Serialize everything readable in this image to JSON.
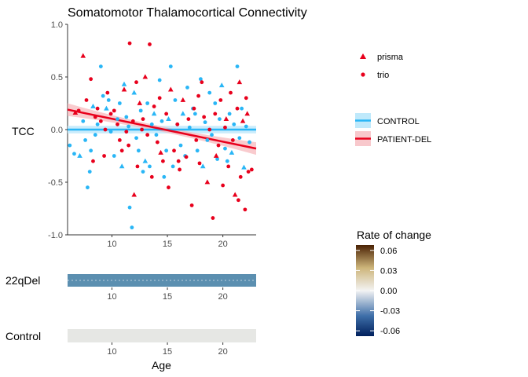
{
  "chart_data": {
    "type": "scatter",
    "title": "Somatomotor Thalamocortical Connectivity",
    "ylabel": "TCC",
    "xlabel": "Age",
    "xlim": [
      6,
      23
    ],
    "ylim": [
      -1,
      1
    ],
    "x_ticks": [
      10,
      15,
      20
    ],
    "y_ticks": [
      -1.0,
      -0.5,
      0.0,
      0.5,
      1.0
    ],
    "y_tick_labels": [
      "-1.0",
      "-0.5",
      "0.0",
      "0.5",
      "1.0"
    ],
    "shape_legend": [
      {
        "label": "prisma",
        "shape": "triangle"
      },
      {
        "label": "trio",
        "shape": "circle"
      }
    ],
    "line_legend": [
      {
        "label": "CONTROL",
        "color": "#29B6F6"
      },
      {
        "label": "PATIENT-DEL",
        "color": "#E8001C"
      }
    ],
    "colors": {
      "control": "#29B6F6",
      "patient": "#E8001C",
      "band_22q": "#5B8FB0",
      "band_control": "#E6E7E4"
    },
    "fits": [
      {
        "name": "CONTROL",
        "x": [
          6,
          23
        ],
        "y": [
          0.0,
          0.0
        ],
        "ci": 0.035
      },
      {
        "name": "PATIENT-DEL",
        "x": [
          6,
          23
        ],
        "y": [
          0.19,
          -0.18
        ],
        "ci_ends": 0.06,
        "ci_mid": 0.025
      }
    ],
    "series": [
      {
        "name": "CONTROL",
        "points": [
          [
            6.2,
            -0.15,
            "c"
          ],
          [
            6.6,
            -0.23,
            "c"
          ],
          [
            7.1,
            -0.25,
            "t"
          ],
          [
            7.4,
            0.08,
            "c"
          ],
          [
            7.6,
            -0.1,
            "c"
          ],
          [
            7.8,
            -0.55,
            "c"
          ],
          [
            8.0,
            -0.4,
            "c"
          ],
          [
            8.1,
            -0.2,
            "c"
          ],
          [
            8.3,
            0.22,
            "t"
          ],
          [
            8.5,
            -0.05,
            "c"
          ],
          [
            8.7,
            0.05,
            "c"
          ],
          [
            9.0,
            0.6,
            "c"
          ],
          [
            9.2,
            0.32,
            "c"
          ],
          [
            9.5,
            0.2,
            "t"
          ],
          [
            9.7,
            0.28,
            "c"
          ],
          [
            9.9,
            -0.02,
            "c"
          ],
          [
            10.2,
            -0.25,
            "c"
          ],
          [
            10.5,
            0.1,
            "c"
          ],
          [
            10.7,
            0.25,
            "c"
          ],
          [
            10.9,
            -0.35,
            "t"
          ],
          [
            11.1,
            0.43,
            "t"
          ],
          [
            11.3,
            0.12,
            "c"
          ],
          [
            11.5,
            0.03,
            "c"
          ],
          [
            11.6,
            -0.74,
            "c"
          ],
          [
            11.8,
            -0.93,
            "c"
          ],
          [
            12.0,
            0.35,
            "t"
          ],
          [
            12.2,
            -0.08,
            "c"
          ],
          [
            12.4,
            -0.2,
            "c"
          ],
          [
            12.6,
            0.18,
            "c"
          ],
          [
            12.8,
            -0.4,
            "c"
          ],
          [
            13.0,
            -0.3,
            "t"
          ],
          [
            13.2,
            0.25,
            "c"
          ],
          [
            13.4,
            -0.35,
            "c"
          ],
          [
            13.6,
            0.05,
            "c"
          ],
          [
            13.8,
            0.15,
            "t"
          ],
          [
            14.0,
            -0.05,
            "c"
          ],
          [
            14.3,
            0.47,
            "c"
          ],
          [
            14.5,
            0.08,
            "c"
          ],
          [
            14.7,
            -0.45,
            "c"
          ],
          [
            14.9,
            -0.2,
            "c"
          ],
          [
            15.1,
            0.1,
            "t"
          ],
          [
            15.3,
            0.6,
            "c"
          ],
          [
            15.5,
            -0.35,
            "c"
          ],
          [
            15.7,
            0.28,
            "c"
          ],
          [
            15.9,
            0.05,
            "c"
          ],
          [
            16.2,
            -0.15,
            "c"
          ],
          [
            16.4,
            0.15,
            "t"
          ],
          [
            16.6,
            -0.25,
            "c"
          ],
          [
            16.8,
            0.4,
            "c"
          ],
          [
            17.0,
            0.02,
            "c"
          ],
          [
            17.3,
            0.2,
            "c"
          ],
          [
            17.5,
            0.15,
            "c"
          ],
          [
            17.7,
            -0.2,
            "c"
          ],
          [
            18.0,
            0.48,
            "c"
          ],
          [
            18.2,
            -0.35,
            "t"
          ],
          [
            18.4,
            0.07,
            "c"
          ],
          [
            18.6,
            -0.1,
            "c"
          ],
          [
            18.8,
            0.35,
            "c"
          ],
          [
            19.0,
            -0.05,
            "c"
          ],
          [
            19.3,
            0.25,
            "c"
          ],
          [
            19.5,
            -0.28,
            "c"
          ],
          [
            19.7,
            0.1,
            "c"
          ],
          [
            19.9,
            0.42,
            "t"
          ],
          [
            20.2,
            -0.18,
            "c"
          ],
          [
            20.4,
            -0.3,
            "c"
          ],
          [
            20.6,
            0.15,
            "c"
          ],
          [
            20.8,
            -0.22,
            "t"
          ],
          [
            21.0,
            0.05,
            "c"
          ],
          [
            21.3,
            0.6,
            "c"
          ],
          [
            21.5,
            -0.08,
            "c"
          ],
          [
            21.7,
            0.2,
            "c"
          ],
          [
            21.9,
            -0.36,
            "t"
          ],
          [
            22.1,
            0.03,
            "c"
          ],
          [
            22.4,
            -0.12,
            "c"
          ]
        ]
      },
      {
        "name": "PATIENT-DEL",
        "points": [
          [
            6.7,
            0.16,
            "t"
          ],
          [
            7.0,
            0.18,
            "c"
          ],
          [
            7.4,
            0.7,
            "t"
          ],
          [
            7.7,
            0.28,
            "c"
          ],
          [
            8.1,
            0.48,
            "c"
          ],
          [
            8.3,
            -0.3,
            "c"
          ],
          [
            8.7,
            0.2,
            "c"
          ],
          [
            9.0,
            0.08,
            "c"
          ],
          [
            9.3,
            -0.25,
            "c"
          ],
          [
            9.6,
            0.35,
            "c"
          ],
          [
            9.9,
            0.15,
            "c"
          ],
          [
            10.2,
            0.18,
            "c"
          ],
          [
            10.5,
            0.05,
            "c"
          ],
          [
            10.7,
            -0.1,
            "c"
          ],
          [
            11.1,
            0.38,
            "t"
          ],
          [
            11.3,
            -0.02,
            "c"
          ],
          [
            11.5,
            -0.15,
            "c"
          ],
          [
            11.6,
            0.82,
            "c"
          ],
          [
            11.9,
            0.08,
            "c"
          ],
          [
            12.0,
            -0.62,
            "t"
          ],
          [
            12.2,
            0.45,
            "c"
          ],
          [
            12.3,
            -0.35,
            "c"
          ],
          [
            12.5,
            0.25,
            "t"
          ],
          [
            12.8,
            0.1,
            "c"
          ],
          [
            13.0,
            0.5,
            "t"
          ],
          [
            13.2,
            -0.05,
            "c"
          ],
          [
            13.4,
            0.81,
            "c"
          ],
          [
            13.6,
            -0.45,
            "c"
          ],
          [
            13.8,
            0.22,
            "c"
          ],
          [
            14.1,
            -0.12,
            "c"
          ],
          [
            14.3,
            0.3,
            "c"
          ],
          [
            14.6,
            -0.3,
            "c"
          ],
          [
            14.9,
            0.15,
            "c"
          ],
          [
            15.1,
            -0.55,
            "c"
          ],
          [
            15.3,
            0.38,
            "t"
          ],
          [
            15.6,
            -0.2,
            "c"
          ],
          [
            15.9,
            0.05,
            "c"
          ],
          [
            16.1,
            -0.38,
            "c"
          ],
          [
            16.4,
            0.28,
            "t"
          ],
          [
            16.7,
            -0.26,
            "c"
          ],
          [
            16.9,
            0.1,
            "c"
          ],
          [
            17.2,
            -0.72,
            "c"
          ],
          [
            17.4,
            0.2,
            "c"
          ],
          [
            17.6,
            -0.1,
            "c"
          ],
          [
            17.9,
            -0.32,
            "c"
          ],
          [
            18.1,
            0.45,
            "c"
          ],
          [
            18.3,
            0.12,
            "c"
          ],
          [
            18.6,
            -0.5,
            "t"
          ],
          [
            18.8,
            0.0,
            "c"
          ],
          [
            19.1,
            -0.84,
            "c"
          ],
          [
            19.3,
            0.15,
            "c"
          ],
          [
            19.6,
            -0.15,
            "c"
          ],
          [
            19.8,
            0.28,
            "c"
          ],
          [
            20.0,
            -0.53,
            "c"
          ],
          [
            20.3,
            0.1,
            "t"
          ],
          [
            20.5,
            -0.35,
            "c"
          ],
          [
            20.7,
            0.35,
            "c"
          ],
          [
            20.9,
            -0.1,
            "c"
          ],
          [
            21.1,
            -0.62,
            "t"
          ],
          [
            21.3,
            0.2,
            "c"
          ],
          [
            21.4,
            -0.67,
            "c"
          ],
          [
            21.6,
            -0.45,
            "c"
          ],
          [
            21.8,
            0.08,
            "t"
          ],
          [
            22.0,
            -0.76,
            "c"
          ],
          [
            22.1,
            0.3,
            "c"
          ],
          [
            22.3,
            -0.4,
            "c"
          ],
          [
            22.6,
            -0.38,
            "c"
          ],
          [
            22.2,
            0.15,
            "t"
          ],
          [
            21.5,
            0.45,
            "t"
          ],
          [
            20.2,
            0.02,
            "c"
          ],
          [
            19.4,
            -0.25,
            "t"
          ],
          [
            17.8,
            0.32,
            "c"
          ],
          [
            16.0,
            -0.3,
            "c"
          ],
          [
            14.4,
            -0.22,
            "t"
          ],
          [
            12.7,
            0.0,
            "c"
          ],
          [
            10.9,
            -0.2,
            "c"
          ],
          [
            9.4,
            0.0,
            "c"
          ],
          [
            8.5,
            0.12,
            "c"
          ]
        ]
      }
    ],
    "strip_panels": [
      {
        "label": "22qDel",
        "fill": "#5B8FB0"
      },
      {
        "label": "Control",
        "fill": "#E6E7E4"
      }
    ],
    "colorbar": {
      "title": "Rate of change",
      "ticks": [
        0.06,
        0.03,
        0.0,
        -0.03,
        -0.06
      ],
      "tick_labels": [
        "0.06",
        "0.03",
        "0.00",
        "-0.03",
        "-0.06"
      ],
      "range": [
        -0.068,
        0.068
      ],
      "stops": [
        "#003C78",
        "#6A9ACB",
        "#F2F2F2",
        "#D8C38C",
        "#5B2C06"
      ]
    }
  }
}
